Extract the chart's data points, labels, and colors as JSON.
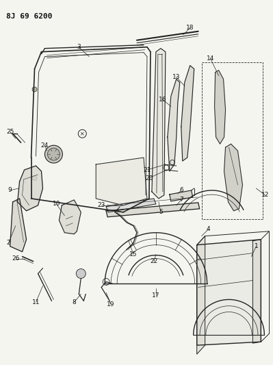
{
  "title": "8J 69 6200",
  "bg_color": "#f5f5f0",
  "text_color": "#111111",
  "line_color": "#222222",
  "fig_width": 3.99,
  "fig_height": 5.33,
  "dpi": 100
}
